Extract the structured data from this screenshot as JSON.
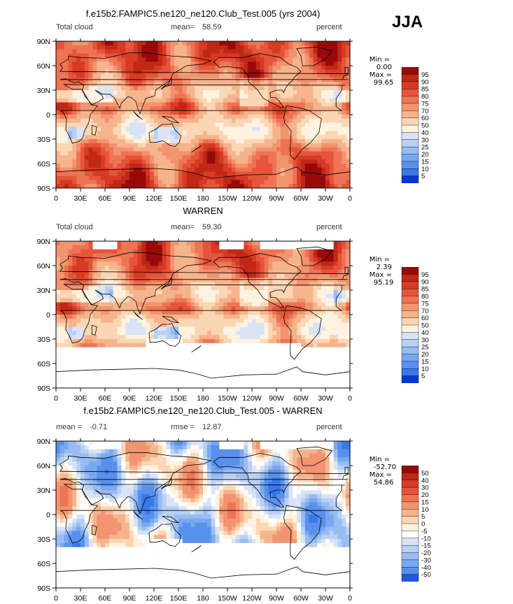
{
  "season": "JJA",
  "palette_abs": [
    "#ffffff",
    "#000080",
    "#0018b8",
    "#0838d0",
    "#2058e0",
    "#3878e8",
    "#5890ec",
    "#78a8f0",
    "#98bcf2",
    "#b8d0f4",
    "#d8e4f6",
    "#fff2e0",
    "#fad6b4",
    "#f6b48c",
    "#f29470",
    "#ee7454",
    "#e6543a",
    "#d83a24",
    "#c02816",
    "#980a0a"
  ],
  "palette_diff": [
    "#000080",
    "#0018b8",
    "#0838d0",
    "#2058e0",
    "#3878e8",
    "#5890ec",
    "#78a8f0",
    "#98bcf2",
    "#b8d0f4",
    "#d8e4f6",
    "#ffffff",
    "#fff2e0",
    "#fad6b4",
    "#f6b48c",
    "#f29470",
    "#ee7454",
    "#e6543a",
    "#d83a24",
    "#c02816",
    "#980a0a"
  ],
  "lon_ticks": [
    "0",
    "30E",
    "60E",
    "90E",
    "120E",
    "150E",
    "180",
    "150W",
    "120W",
    "90W",
    "60W",
    "30W",
    "0"
  ],
  "lat_ticks": [
    "90N",
    "60N",
    "30N",
    "0",
    "30S",
    "60S",
    "90S"
  ],
  "chart_data": [
    {
      "type": "heatmap",
      "title": "f.e15b2.FAMPIC5.ne120_ne120.Club_Test.005 (yrs 2004)",
      "left_label": "Total cloud",
      "center_label": "mean=",
      "center_value": "58.59",
      "right_label": "percent",
      "stats": {
        "min_label": "Min =",
        "min": "0.00",
        "max_label": "Max =",
        "max": "99.65"
      },
      "colorbar_levels": [
        "95",
        "90",
        "85",
        "80",
        "75",
        "70",
        "60",
        "50",
        "40",
        "30",
        "25",
        "20",
        "15",
        "10",
        "5"
      ],
      "x_range": [
        0,
        360
      ],
      "y_range": [
        -90,
        90
      ]
    },
    {
      "type": "heatmap",
      "title": "WARREN",
      "left_label": "Total cloud",
      "center_label": "mean=",
      "center_value": "59.30",
      "right_label": "percent",
      "stats": {
        "min_label": "Min =",
        "min": "2.39",
        "max_label": "Max =",
        "max": "95.19"
      },
      "colorbar_levels": [
        "95",
        "90",
        "85",
        "80",
        "75",
        "70",
        "60",
        "50",
        "40",
        "30",
        "25",
        "20",
        "15",
        "10",
        "5"
      ],
      "x_range": [
        0,
        360
      ],
      "y_range": [
        -90,
        90
      ]
    },
    {
      "type": "heatmap",
      "title": "f.e15b2.FAMPIC5.ne120_ne120.Club_Test.005 - WARREN",
      "left_label": "mean =",
      "left_value": "-0.71",
      "center_label": "rmse =",
      "center_value": "12.87",
      "right_label": "percent",
      "stats": {
        "min_label": "Min =",
        "min": "-52.70",
        "max_label": "Max =",
        "max": "54.86"
      },
      "colorbar_levels": [
        "50",
        "40",
        "30",
        "20",
        "15",
        "10",
        "5",
        "0",
        "-5",
        "-10",
        "-15",
        "-20",
        "-30",
        "-40",
        "-50"
      ],
      "x_range": [
        0,
        360
      ],
      "y_range": [
        -90,
        90
      ]
    }
  ]
}
